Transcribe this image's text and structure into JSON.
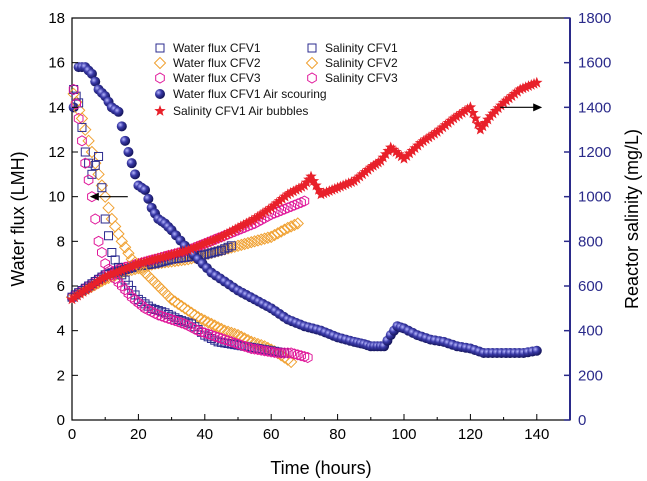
{
  "chart_data": {
    "type": "scatter",
    "xlabel": "Time (hours)",
    "ylabel": "Water flux (LMH)",
    "y2label": "Reactor salinity (mg/L)",
    "xlim": [
      0,
      150
    ],
    "ylim": [
      0,
      18
    ],
    "y2lim": [
      0,
      1800
    ],
    "xticks": [
      "0",
      "20",
      "40",
      "60",
      "80",
      "100",
      "120",
      "140"
    ],
    "yticks": [
      "0",
      "2",
      "4",
      "6",
      "8",
      "10",
      "12",
      "14",
      "16",
      "18"
    ],
    "y2ticks": [
      "0",
      "200",
      "400",
      "600",
      "800",
      "1000",
      "1200",
      "1400",
      "1600",
      "1800"
    ],
    "grid": false,
    "legend_position": "top",
    "colors": {
      "axis_left": "#000000",
      "axis_right": "#2a2a8a",
      "cfv1": "#2b2b8f",
      "cfv2": "#f0a030",
      "cfv3": "#e0189a",
      "air_scouring": "#2a2a8a",
      "air_bubbles": "#e8202a"
    },
    "series": [
      {
        "name": "Water flux CFV1",
        "axis": "left",
        "marker": "square-open",
        "color": "#2b2b8f",
        "x": [
          0.5,
          2,
          4,
          6,
          8,
          10,
          12,
          15,
          18,
          20,
          24,
          28,
          32,
          36,
          40,
          44,
          48,
          52,
          56,
          60,
          64
        ],
        "y": [
          14.8,
          14.2,
          12.0,
          11.0,
          11.8,
          9.0,
          7.5,
          6.5,
          5.8,
          5.4,
          5.0,
          4.8,
          4.5,
          4.3,
          3.8,
          3.5,
          3.4,
          3.3,
          3.2,
          3.1,
          3.0
        ]
      },
      {
        "name": "Water flux CFV2",
        "axis": "left",
        "marker": "diamond-open",
        "color": "#f0a030",
        "x": [
          0.5,
          3,
          6,
          9,
          12,
          15,
          18,
          22,
          26,
          30,
          34,
          38,
          42,
          46,
          50,
          54,
          58,
          62,
          66
        ],
        "y": [
          14.6,
          13.5,
          12.0,
          10.5,
          9.0,
          8.0,
          7.2,
          6.6,
          6.0,
          5.4,
          5.0,
          4.6,
          4.3,
          4.0,
          3.8,
          3.5,
          3.3,
          3.0,
          2.6
        ]
      },
      {
        "name": "Water flux CFV3",
        "axis": "left",
        "marker": "hexagon-open",
        "color": "#e0189a",
        "x": [
          0.5,
          2,
          4,
          6,
          8,
          10,
          12,
          15,
          18,
          22,
          26,
          30,
          34,
          38,
          42,
          46,
          50,
          54,
          58,
          62,
          66,
          71
        ],
        "y": [
          14.8,
          13.5,
          11.5,
          10.0,
          8.0,
          7.0,
          6.5,
          6.0,
          5.5,
          5.0,
          4.7,
          4.5,
          4.3,
          4.0,
          3.8,
          3.6,
          3.4,
          3.2,
          3.1,
          3.0,
          3.0,
          2.8
        ]
      },
      {
        "name": "Salinity CFV1",
        "axis": "right",
        "marker": "square-open",
        "color": "#2b2b8f",
        "x": [
          0,
          5,
          10,
          15,
          20,
          25,
          30,
          35,
          40,
          45,
          48
        ],
        "y": [
          550,
          600,
          650,
          670,
          690,
          700,
          720,
          730,
          740,
          760,
          780
        ]
      },
      {
        "name": "Salinity CFV2",
        "axis": "right",
        "marker": "diamond-open",
        "color": "#f0a030",
        "x": [
          0,
          5,
          10,
          15,
          20,
          25,
          30,
          35,
          40,
          45,
          50,
          55,
          60,
          65,
          68
        ],
        "y": [
          550,
          590,
          630,
          660,
          680,
          700,
          710,
          720,
          740,
          760,
          780,
          800,
          820,
          860,
          880
        ]
      },
      {
        "name": "Salinity CFV3",
        "axis": "right",
        "marker": "hexagon-open",
        "color": "#e0189a",
        "x": [
          0,
          5,
          10,
          15,
          20,
          25,
          30,
          35,
          40,
          45,
          50,
          55,
          60,
          65,
          70
        ],
        "y": [
          550,
          600,
          650,
          680,
          700,
          720,
          740,
          760,
          790,
          820,
          850,
          880,
          920,
          950,
          980
        ]
      },
      {
        "name": "Water flux CFV1 Air scouring",
        "axis": "left",
        "marker": "sphere",
        "color": "#2a2a8a",
        "x": [
          0.5,
          2,
          4,
          6,
          8,
          10,
          12,
          14,
          16,
          18,
          20,
          22,
          24,
          26,
          28,
          30,
          34,
          38,
          42,
          46,
          50,
          55,
          60,
          65,
          70,
          75,
          80,
          85,
          88,
          90,
          92,
          94,
          96,
          98,
          100,
          104,
          108,
          112,
          116,
          120,
          124,
          128,
          132,
          136,
          140
        ],
        "y": [
          14.0,
          15.8,
          15.8,
          15.5,
          14.8,
          14.5,
          14.0,
          13.8,
          12.5,
          11.5,
          10.5,
          10.3,
          9.5,
          9.0,
          8.8,
          8.5,
          7.8,
          7.2,
          6.6,
          6.2,
          5.8,
          5.4,
          5.0,
          4.5,
          4.2,
          4.0,
          3.7,
          3.5,
          3.4,
          3.3,
          3.3,
          3.3,
          3.8,
          4.2,
          4.1,
          3.8,
          3.6,
          3.5,
          3.3,
          3.2,
          3.0,
          3.0,
          3.0,
          3.0,
          3.1
        ]
      },
      {
        "name": "Salinity CFV1 Air bubbles",
        "axis": "right",
        "marker": "star",
        "color": "#e8202a",
        "x": [
          0,
          5,
          10,
          15,
          20,
          25,
          30,
          35,
          40,
          45,
          50,
          55,
          60,
          65,
          70,
          72,
          75,
          80,
          85,
          90,
          93,
          96,
          100,
          105,
          110,
          115,
          120,
          123,
          126,
          130,
          135,
          140
        ],
        "y": [
          540,
          590,
          640,
          670,
          700,
          720,
          740,
          760,
          790,
          820,
          860,
          900,
          950,
          1010,
          1050,
          1090,
          1010,
          1040,
          1070,
          1130,
          1160,
          1220,
          1170,
          1240,
          1290,
          1350,
          1400,
          1300,
          1360,
          1420,
          1480,
          1510
        ]
      }
    ],
    "legend": [
      {
        "label": "Water flux CFV1",
        "marker": "square-open",
        "color": "#2b2b8f"
      },
      {
        "label": "Water flux CFV2",
        "marker": "diamond-open",
        "color": "#f0a030"
      },
      {
        "label": "Water flux CFV3",
        "marker": "hexagon-open",
        "color": "#e0189a"
      },
      {
        "label": "Water flux CFV1 Air scouring",
        "marker": "sphere",
        "color": "#2a2a8a"
      },
      {
        "label": "Salinity CFV1 Air bubbles",
        "marker": "star",
        "color": "#e8202a"
      },
      {
        "label": "Salinity CFV1",
        "marker": "square-open",
        "color": "#2b2b8f"
      },
      {
        "label": "Salinity CFV2",
        "marker": "diamond-open",
        "color": "#f0a030"
      },
      {
        "label": "Salinity CFV3",
        "marker": "hexagon-open",
        "color": "#e0189a"
      }
    ],
    "annotations": [
      {
        "type": "arrow",
        "direction": "left",
        "points_to": "left-axis",
        "at_x": 15,
        "at_y": 10
      },
      {
        "type": "arrow",
        "direction": "right",
        "points_to": "right-axis",
        "at_x": 135,
        "at_y": 14
      }
    ]
  }
}
